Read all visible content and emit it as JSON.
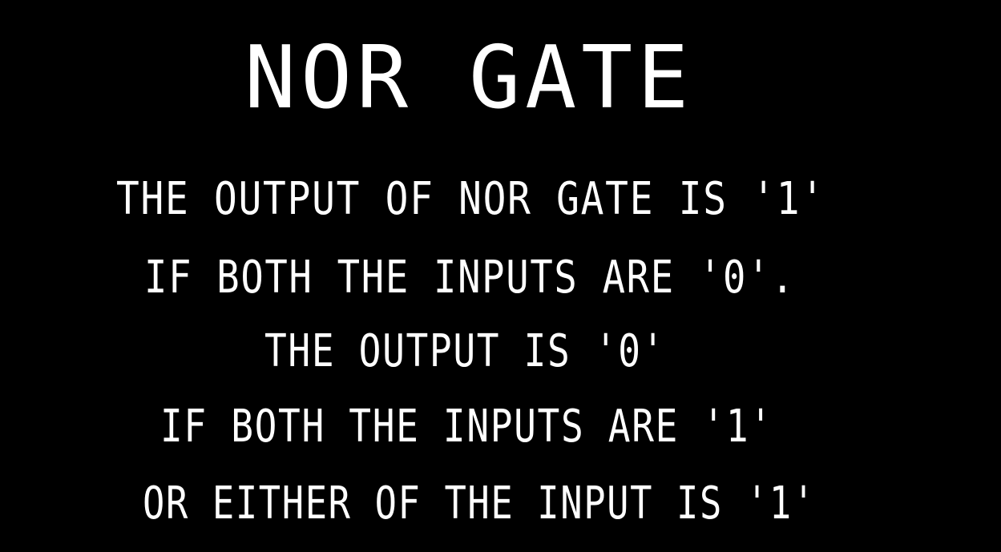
{
  "slide": {
    "title": "NOR GATE",
    "lines": [
      "THE OUTPUT OF NOR GATE IS '1'",
      "IF BOTH THE INPUTS ARE '0'.",
      "THE OUTPUT IS '0'",
      "IF BOTH THE INPUTS ARE '1'",
      "OR EITHER OF THE INPUT IS '1'"
    ]
  },
  "colors": {
    "background": "#000000",
    "text": "#ffffff"
  }
}
